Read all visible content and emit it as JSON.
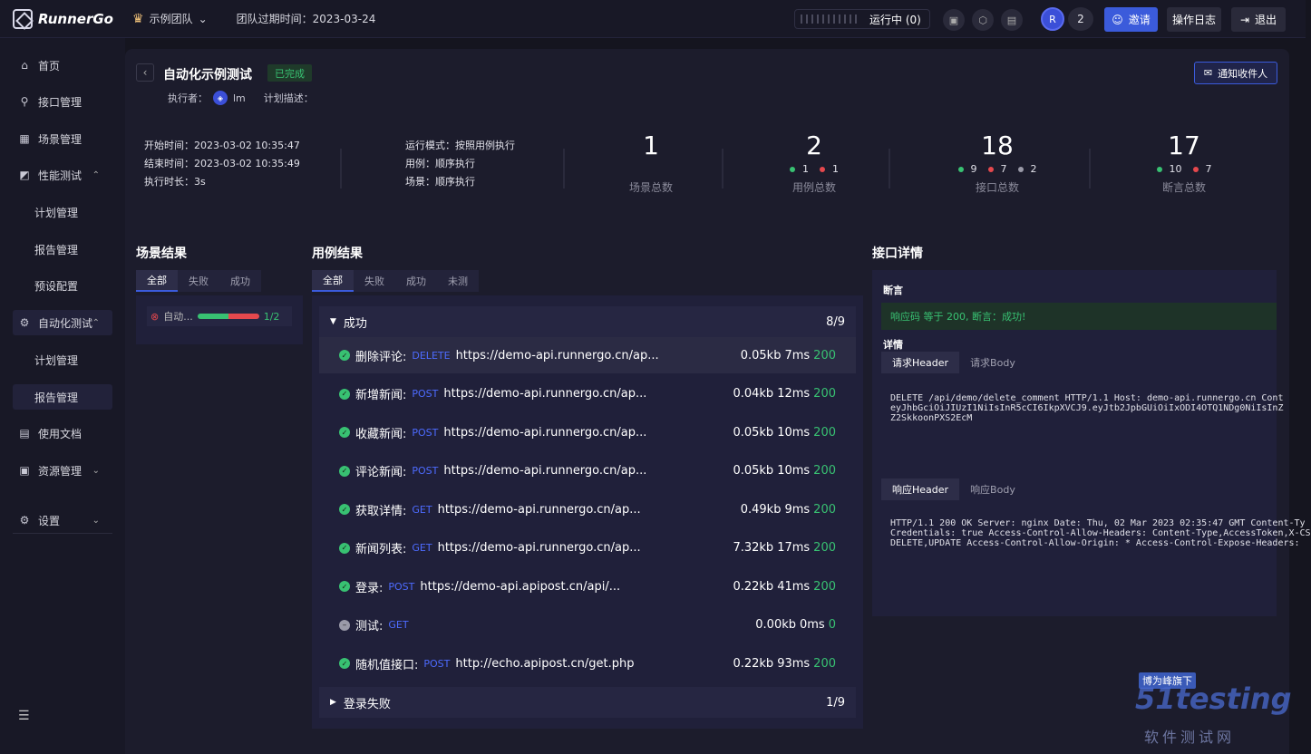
{
  "app": {
    "logo_text": "RunnerGo"
  },
  "topbar": {
    "team_name": "示例团队",
    "expire_text": "团队过期时间：2023-03-24",
    "run_status": "运行中 (0)",
    "avatar_initials": "R",
    "member_count": "2",
    "invite_label": "邀请",
    "oplog_label": "操作日志",
    "logout_label": "退出"
  },
  "sidebar": {
    "items": [
      {
        "label": "首页",
        "icon": "home-icon"
      },
      {
        "label": "接口管理",
        "icon": "api-icon"
      },
      {
        "label": "场景管理",
        "icon": "scene-icon"
      },
      {
        "label": "性能测试",
        "icon": "chart-icon"
      },
      {
        "label": "计划管理"
      },
      {
        "label": "报告管理"
      },
      {
        "label": "预设配置"
      },
      {
        "label": "自动化测试",
        "icon": "automation-icon"
      },
      {
        "label": "计划管理"
      },
      {
        "label": "报告管理"
      },
      {
        "label": "使用文档",
        "icon": "doc-icon"
      },
      {
        "label": "资源管理",
        "icon": "resource-icon"
      },
      {
        "label": "设置",
        "icon": "settings-icon"
      }
    ]
  },
  "report": {
    "title": "自动化示例测试",
    "status": "已完成",
    "executor_label": "执行者：",
    "executor_name": "lm",
    "plan_desc_label": "计划描述：",
    "notify_label": "通知收件人",
    "start_time": "开始时间：2023-03-02 10:35:47",
    "end_time": "结束时间：2023-03-02 10:35:49",
    "duration": "执行时长：3s",
    "run_mode": "运行模式：按照用例执行",
    "case_mode": "用例：顺序执行",
    "scene_mode": "场景：顺序执行"
  },
  "stats": [
    {
      "num": "1",
      "label": "场景总数"
    },
    {
      "num": "2",
      "label": "用例总数",
      "success": "1",
      "fail": "1"
    },
    {
      "num": "18",
      "label": "接口总数",
      "success": "9",
      "fail": "7",
      "skip": "2"
    },
    {
      "num": "17",
      "label": "断言总数",
      "success": "10",
      "fail": "7"
    }
  ],
  "scenes": {
    "title": "场景结果",
    "tabs": [
      "全部",
      "失败",
      "成功"
    ],
    "item_name": "自动...",
    "item_ratio": "1/2",
    "success_fraction": 0.5
  },
  "cases": {
    "title": "用例结果",
    "tabs": [
      "全部",
      "失败",
      "成功",
      "未测"
    ],
    "group_success": {
      "label": "成功",
      "count": "8/9"
    },
    "group_fail": {
      "label": "登录失败",
      "count": "1/9"
    },
    "rows": [
      {
        "name": "删除评论:",
        "method": "DELETE",
        "url": "https://demo-api.runnergo.cn/ap...",
        "size": "0.05kb",
        "time": "7ms",
        "code": "200",
        "status": "ok"
      },
      {
        "name": "新增新闻:",
        "method": "POST",
        "url": "https://demo-api.runnergo.cn/ap...",
        "size": "0.04kb",
        "time": "12ms",
        "code": "200",
        "status": "ok"
      },
      {
        "name": "收藏新闻:",
        "method": "POST",
        "url": "https://demo-api.runnergo.cn/ap...",
        "size": "0.05kb",
        "time": "10ms",
        "code": "200",
        "status": "ok"
      },
      {
        "name": "评论新闻:",
        "method": "POST",
        "url": "https://demo-api.runnergo.cn/ap...",
        "size": "0.05kb",
        "time": "10ms",
        "code": "200",
        "status": "ok"
      },
      {
        "name": "获取详情:",
        "method": "GET",
        "url": "https://demo-api.runnergo.cn/ap...",
        "size": "0.49kb",
        "time": "9ms",
        "code": "200",
        "status": "ok"
      },
      {
        "name": "新闻列表:",
        "method": "GET",
        "url": "https://demo-api.runnergo.cn/ap...",
        "size": "7.32kb",
        "time": "17ms",
        "code": "200",
        "status": "ok"
      },
      {
        "name": "登录:",
        "method": "POST",
        "url": "https://demo-api.apipost.cn/api/...",
        "size": "0.22kb",
        "time": "41ms",
        "code": "200",
        "status": "ok"
      },
      {
        "name": "测试:",
        "method": "GET",
        "url": "",
        "size": "0.00kb",
        "time": "0ms",
        "code": "0",
        "status": "skip"
      },
      {
        "name": "随机值接口:",
        "method": "POST",
        "url": "http://echo.apipost.cn/get.php",
        "size": "0.22kb",
        "time": "93ms",
        "code": "200",
        "status": "ok"
      }
    ]
  },
  "detail": {
    "title": "接口详情",
    "assert_label": "断言",
    "assert_text": "响应码 等于 200, 断言：成功!",
    "detail_label": "详情",
    "req_tabs": [
      "请求Header",
      "请求Body"
    ],
    "req_lines": [
      "DELETE /api/demo/delete_comment HTTP/1.1 Host: demo-api.runnergo.cn Cont",
      "eyJhbGciOiJIUzI1NiIsInR5cCI6IkpXVCJ9.eyJtb2JpbGUiOiIxODI4OTQ1NDg0NiIsInZ",
      "Z2SkkoonPXS2EcM"
    ],
    "resp_tabs": [
      "响应Header",
      "响应Body"
    ],
    "resp_lines": [
      "HTTP/1.1 200 OK Server: nginx Date: Thu, 02 Mar 2023 02:35:47 GMT Content-Ty",
      "Credentials: true Access-Control-Allow-Headers: Content-Type,AccessToken,X-CS",
      "DELETE,UPDATE Access-Control-Allow-Origin: * Access-Control-Expose-Headers:"
    ]
  },
  "watermark": {
    "badge": "博为峰旗下",
    "brand": "51testing",
    "line": "软件测试网"
  },
  "colors": {
    "accent": "#3b5bdb",
    "success": "#38c172",
    "fail": "#e5484d",
    "skip": "#9a9aa8"
  }
}
